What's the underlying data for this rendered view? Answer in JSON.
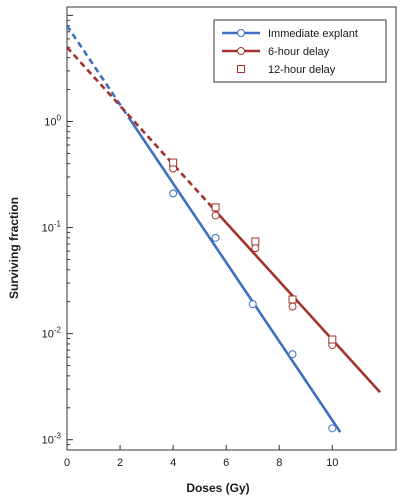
{
  "chart_data": {
    "type": "scatter",
    "xlabel": "Doses (Gy)",
    "ylabel": "Surviving fraction",
    "yscale": "log",
    "xlim": [
      0,
      12.4
    ],
    "ylim": [
      0.0008,
      12
    ],
    "x_ticks": [
      0,
      2,
      4,
      6,
      8,
      10
    ],
    "y_ticks": [
      {
        "value": 0.001,
        "base": "10",
        "exp": "-3"
      },
      {
        "value": 0.01,
        "base": "10",
        "exp": "-2"
      },
      {
        "value": 0.1,
        "base": "10",
        "exp": "-1"
      },
      {
        "value": 1,
        "base": "10",
        "exp": "0"
      }
    ],
    "grid": false,
    "legend_position": "top-right",
    "colors": {
      "immediate": "#3f6fbf",
      "delay": "#a5312b",
      "axis": "#333333"
    },
    "series": [
      {
        "name": "Immediate explant",
        "marker": "circle",
        "color": "#3f6fbf",
        "points": [
          {
            "x": 4.0,
            "y": 0.21
          },
          {
            "x": 5.6,
            "y": 0.08
          },
          {
            "x": 7.0,
            "y": 0.019
          },
          {
            "x": 8.5,
            "y": 0.0064
          },
          {
            "x": 10.0,
            "y": 0.00128
          }
        ],
        "fit": {
          "x_start": 0,
          "y_start": 8.0,
          "x_end": 10.3,
          "y_end": 0.00118,
          "dashed_until_x": 2.4
        }
      },
      {
        "name": "6-hour delay",
        "marker": "circle",
        "color": "#a5312b",
        "points": [
          {
            "x": 4.0,
            "y": 0.36
          },
          {
            "x": 5.6,
            "y": 0.13
          },
          {
            "x": 7.1,
            "y": 0.064
          },
          {
            "x": 8.5,
            "y": 0.018
          },
          {
            "x": 10.0,
            "y": 0.0078
          }
        ],
        "fit": {
          "x_start": 0,
          "y_start": 5.0,
          "x_end": 11.8,
          "y_end": 0.0028,
          "dashed_until_x": 5.4
        }
      },
      {
        "name": "12-hour delay",
        "marker": "square",
        "color": "#a5312b",
        "points": [
          {
            "x": 4.0,
            "y": 0.41
          },
          {
            "x": 5.6,
            "y": 0.155
          },
          {
            "x": 7.1,
            "y": 0.074
          },
          {
            "x": 8.5,
            "y": 0.021
          },
          {
            "x": 10.0,
            "y": 0.0088
          }
        ]
      }
    ]
  }
}
